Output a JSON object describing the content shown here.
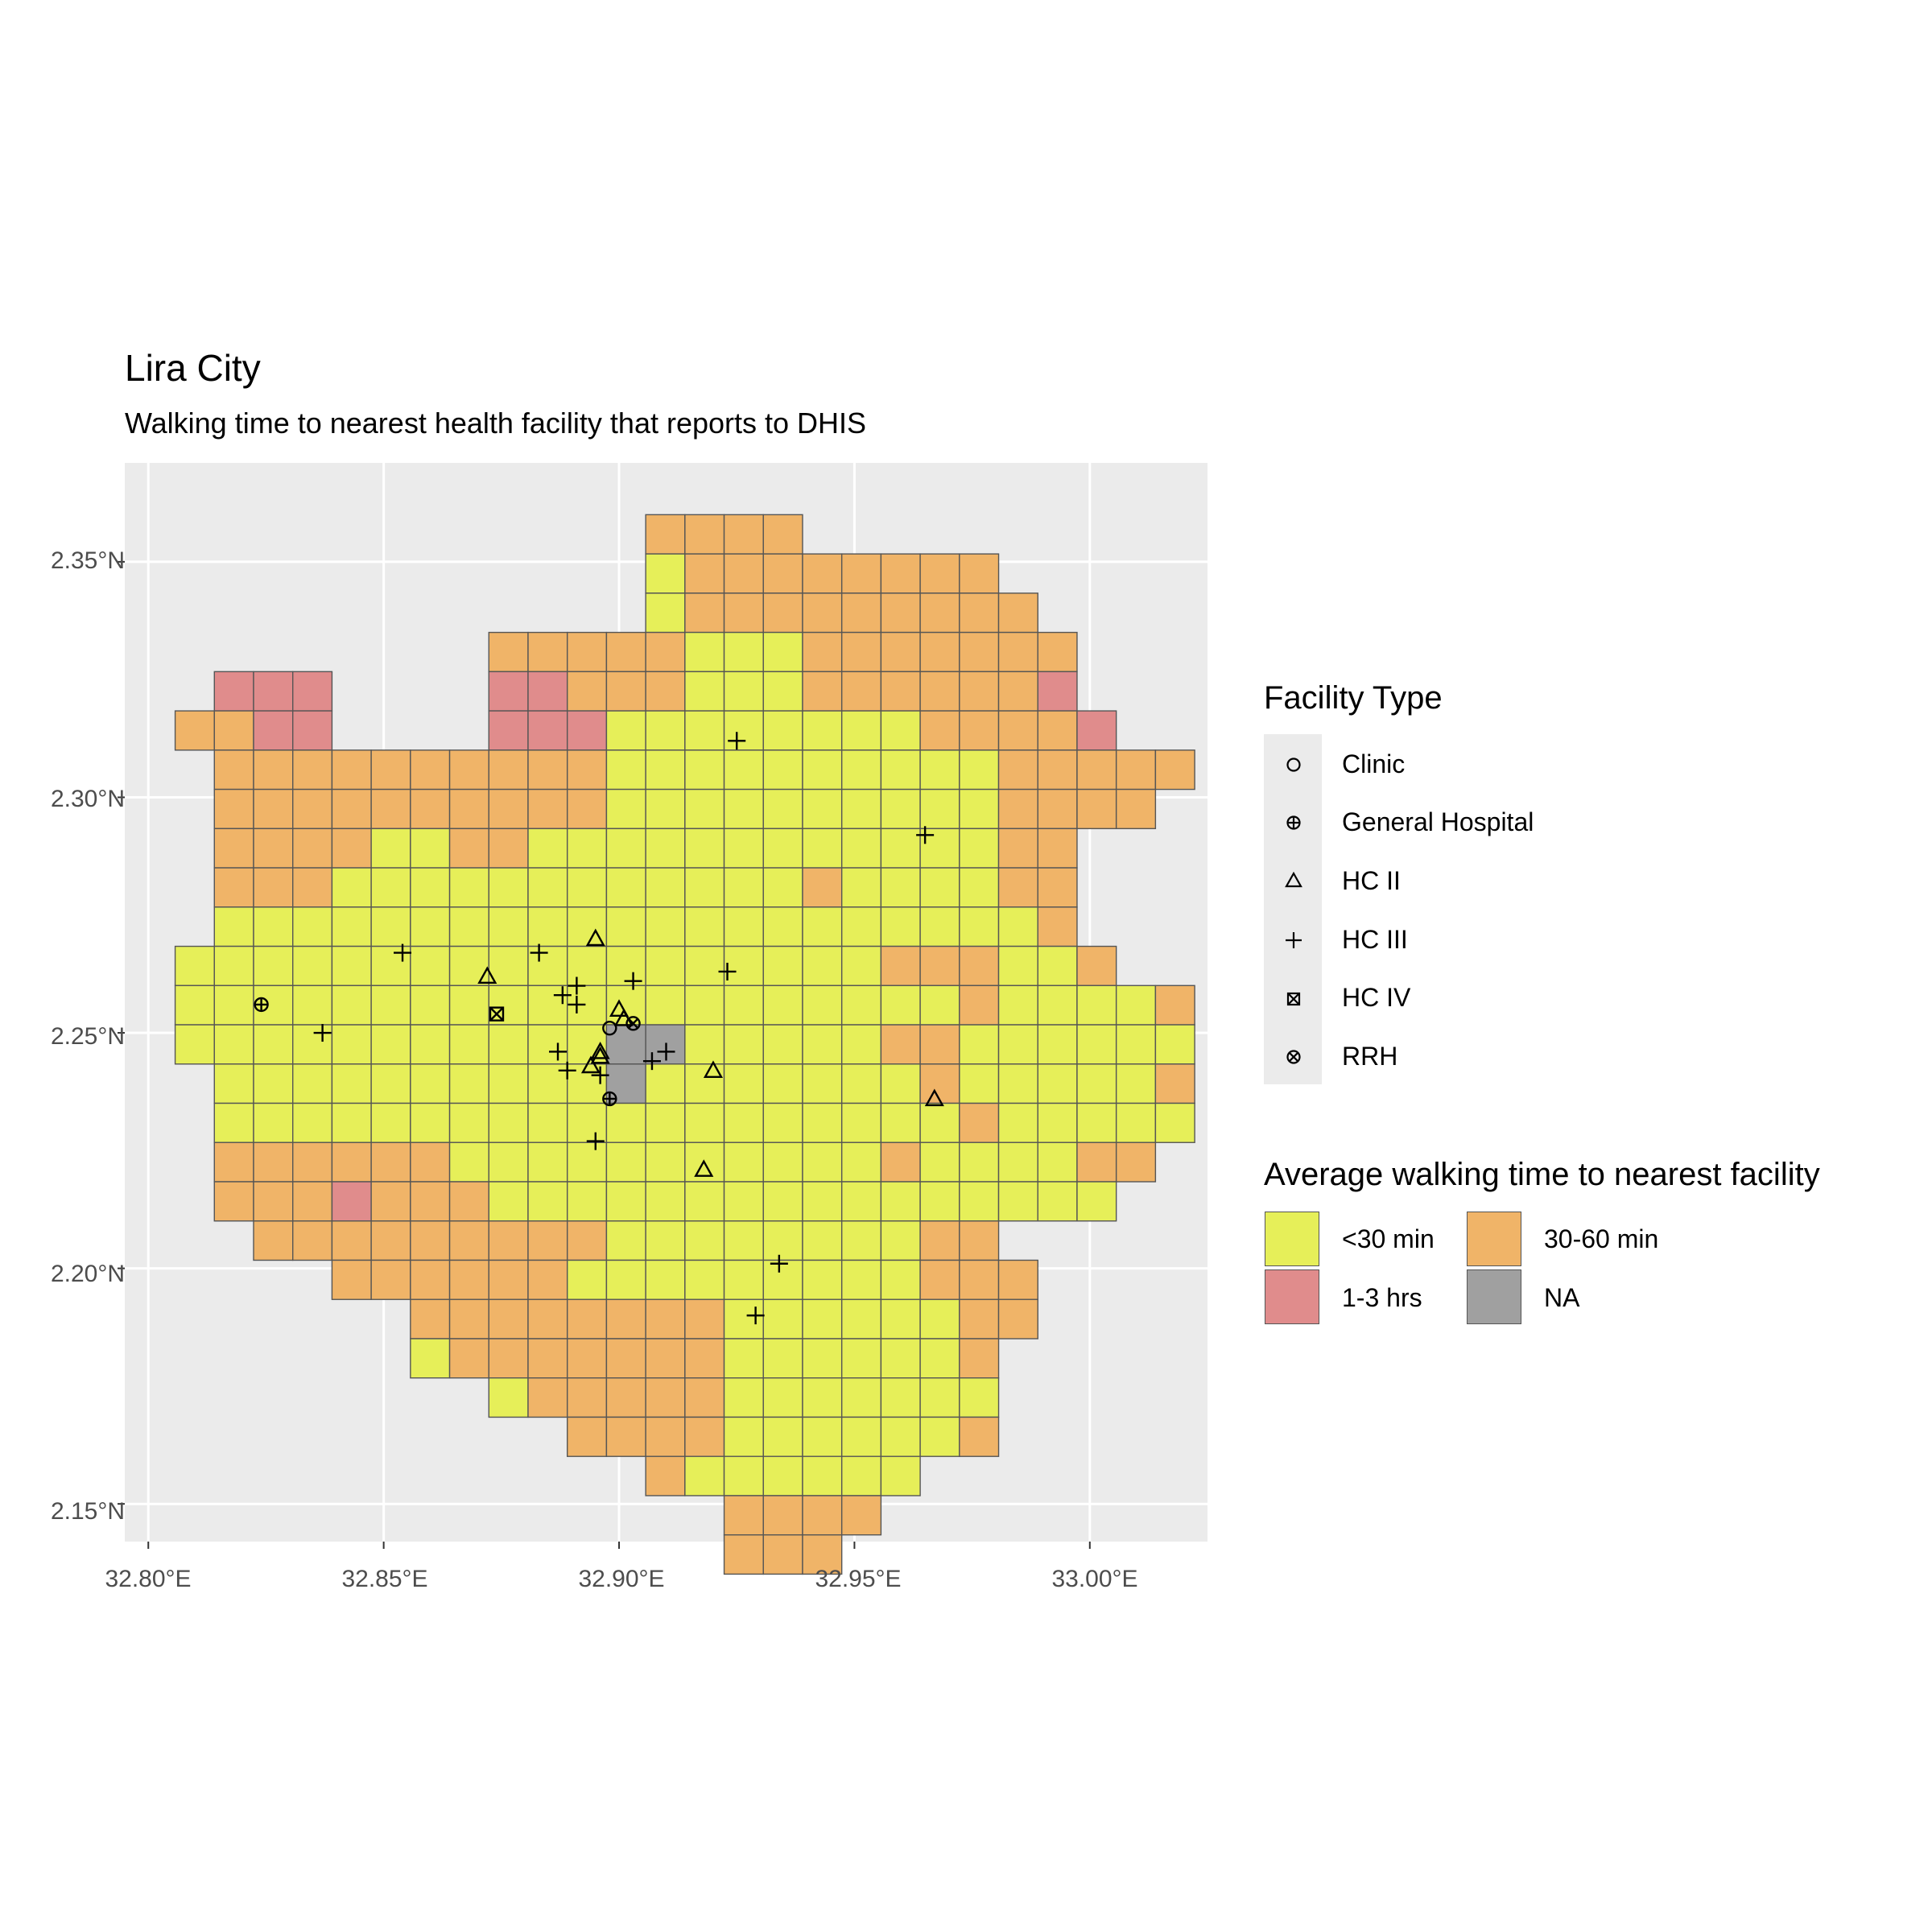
{
  "title": "Lira City",
  "subtitle": "Walking time to nearest health facility that reports to DHIS",
  "axes": {
    "x_ticks": [
      "32.80°E",
      "32.85°E",
      "32.90°E",
      "32.95°E",
      "33.00°E"
    ],
    "y_ticks": [
      "2.35°N",
      "2.30°N",
      "2.25°N",
      "2.20°N",
      "2.15°N"
    ]
  },
  "legend_facility": {
    "title": "Facility Type",
    "items": [
      {
        "label": "Clinic",
        "icon": "circle-open"
      },
      {
        "label": "General Hospital",
        "icon": "circle-plus"
      },
      {
        "label": "HC II",
        "icon": "triangle-open"
      },
      {
        "label": "HC III",
        "icon": "plus"
      },
      {
        "label": "HC IV",
        "icon": "square-cross"
      },
      {
        "label": "RRH",
        "icon": "circle-cross"
      }
    ]
  },
  "legend_time": {
    "title": "Average walking time to nearest facility",
    "items": [
      {
        "label": "<30 min",
        "color": "#e6ef59"
      },
      {
        "label": "30-60 min",
        "color": "#f0b468"
      },
      {
        "label": "1-3 hrs",
        "color": "#e08c8c"
      },
      {
        "label": "NA",
        "color": "#a0a0a0"
      }
    ]
  },
  "chart_data": {
    "type": "map",
    "xlim": [
      32.795,
      33.025
    ],
    "ylim": [
      2.142,
      2.371
    ],
    "cell_size_deg": 0.00833,
    "grid_origin": {
      "lon": 32.8057,
      "lat": 2.36
    },
    "colors": {
      "Y": "#e6ef59",
      "O": "#f0b468",
      "R": "#e08c8c",
      "N": "#a0a0a0"
    },
    "grid_rows": [
      "............OOOO.....",
      "............YOOOOOOOO",
      "............YOOOOOOOOO",
      "........OOOOOYYYOOOOOOO",
      ".RRR....RROOOYYYOOOOOOR",
      "OORR....RRRYYYYYYYYOOOOR",
      ".OOOOOOOOOOYYYYYYYYYYOOOOO",
      ".OOOOOOOOOOYYYYYYYYYYOOOO",
      ".OOOOYYOOYYYYYYYYYYYYOO",
      ".OOOYYYYYYYYYYYYOYYYYOO",
      ".YYYYYYYYYYYYYYYYYYYYYO",
      "YYYYYYYYYYYYYYYYYYOOOYYO",
      "YYYYYYYYYYYYYYYYYYYYOYYYYO",
      "YYYYYYYYYYYNNYYYYYOOYYYYYY",
      ".YYYYYYYYYYNYYYYYYYOYYYYYO",
      ".YYYYYYYYYYYYYYYYYYYOYYYYY",
      ".OOOOOOYYYYYYYYYYYOYYYYOO",
      ".OOOROOOYYYYYYYYYYYYYYYY",
      "..OOOOOOOOOYYYYYYYYOO",
      "....OOOOOOYYYYYYYYYOOO",
      "......OOOOOOOOYYYYYYOO",
      "......YOOOOOOOYYYYYYO",
      "........YOOOOOYYYYYYY",
      "..........OOOOYYYYYYO",
      "............OYYYYYY",
      "..............OOOO",
      "..............OOO"
    ],
    "facilities": [
      {
        "type": "HC III",
        "lon": 32.925,
        "lat": 2.312
      },
      {
        "type": "HC III",
        "lon": 32.965,
        "lat": 2.292
      },
      {
        "type": "HC II",
        "lon": 32.895,
        "lat": 2.27
      },
      {
        "type": "HC III",
        "lon": 32.854,
        "lat": 2.267
      },
      {
        "type": "HC III",
        "lon": 32.883,
        "lat": 2.267
      },
      {
        "type": "HC III",
        "lon": 32.923,
        "lat": 2.263
      },
      {
        "type": "HC II",
        "lon": 32.872,
        "lat": 2.262
      },
      {
        "type": "HC III",
        "lon": 32.903,
        "lat": 2.261
      },
      {
        "type": "HC III",
        "lon": 32.891,
        "lat": 2.26
      },
      {
        "type": "HC III",
        "lon": 32.888,
        "lat": 2.258
      },
      {
        "type": "General Hospital",
        "lon": 32.824,
        "lat": 2.256
      },
      {
        "type": "HC III",
        "lon": 32.891,
        "lat": 2.256
      },
      {
        "type": "HC II",
        "lon": 32.9,
        "lat": 2.255
      },
      {
        "type": "HC IV",
        "lon": 32.874,
        "lat": 2.254
      },
      {
        "type": "HC II",
        "lon": 32.901,
        "lat": 2.253
      },
      {
        "type": "RRH",
        "lon": 32.903,
        "lat": 2.252
      },
      {
        "type": "Clinic",
        "lon": 32.898,
        "lat": 2.251
      },
      {
        "type": "HC III",
        "lon": 32.837,
        "lat": 2.25
      },
      {
        "type": "HC III",
        "lon": 32.887,
        "lat": 2.246
      },
      {
        "type": "HC III",
        "lon": 32.91,
        "lat": 2.246
      },
      {
        "type": "HC II",
        "lon": 32.896,
        "lat": 2.246
      },
      {
        "type": "HC II",
        "lon": 32.896,
        "lat": 2.245
      },
      {
        "type": "HC III",
        "lon": 32.907,
        "lat": 2.244
      },
      {
        "type": "HC II",
        "lon": 32.894,
        "lat": 2.243
      },
      {
        "type": "HC III",
        "lon": 32.889,
        "lat": 2.242
      },
      {
        "type": "HC II",
        "lon": 32.92,
        "lat": 2.242
      },
      {
        "type": "HC III",
        "lon": 32.896,
        "lat": 2.241
      },
      {
        "type": "HC II",
        "lon": 32.967,
        "lat": 2.236
      },
      {
        "type": "General Hospital",
        "lon": 32.898,
        "lat": 2.236
      },
      {
        "type": "HC III",
        "lon": 32.895,
        "lat": 2.227
      },
      {
        "type": "HC II",
        "lon": 32.918,
        "lat": 2.221
      },
      {
        "type": "HC III",
        "lon": 32.934,
        "lat": 2.201
      },
      {
        "type": "HC III",
        "lon": 32.929,
        "lat": 2.19
      }
    ]
  }
}
